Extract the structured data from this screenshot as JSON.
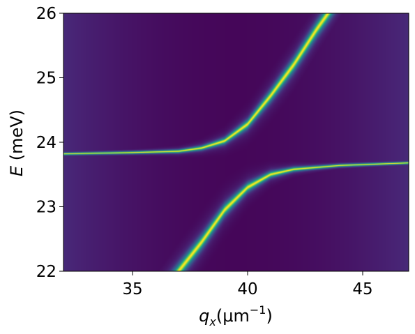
{
  "chart_data": {
    "type": "heatmap",
    "colormap": "viridis",
    "xlabel": {
      "symbol": "q",
      "subscript": "x",
      "unit": "(μm",
      "exponent": "−1",
      "close": ")"
    },
    "ylabel": {
      "symbol": "E",
      "unit": " (meV)"
    },
    "xlim": [
      32,
      47
    ],
    "ylim": [
      22,
      26
    ],
    "xticks": [
      {
        "value": 35,
        "label": "35"
      },
      {
        "value": 40,
        "label": "40"
      },
      {
        "value": 45,
        "label": "45"
      }
    ],
    "yticks": [
      {
        "value": 22,
        "label": "22"
      },
      {
        "value": 23,
        "label": "23"
      },
      {
        "value": 24,
        "label": "24"
      },
      {
        "value": 25,
        "label": "25"
      },
      {
        "value": 26,
        "label": "26"
      }
    ],
    "grid": false,
    "branches": [
      {
        "name": "",
        "points": [
          [
            32,
            23.82
          ],
          [
            35,
            23.84
          ],
          [
            37,
            23.86
          ],
          [
            38,
            23.91
          ],
          [
            39,
            24.02
          ],
          [
            40,
            24.28
          ],
          [
            41,
            24.72
          ],
          [
            42,
            25.2
          ],
          [
            43,
            25.75
          ],
          [
            43.5,
            26.0
          ]
        ]
      },
      {
        "name": "",
        "points": [
          [
            37,
            22.0
          ],
          [
            38,
            22.45
          ],
          [
            39,
            22.95
          ],
          [
            40,
            23.3
          ],
          [
            41,
            23.5
          ],
          [
            42,
            23.58
          ],
          [
            44,
            23.64
          ],
          [
            47,
            23.68
          ]
        ]
      }
    ]
  }
}
